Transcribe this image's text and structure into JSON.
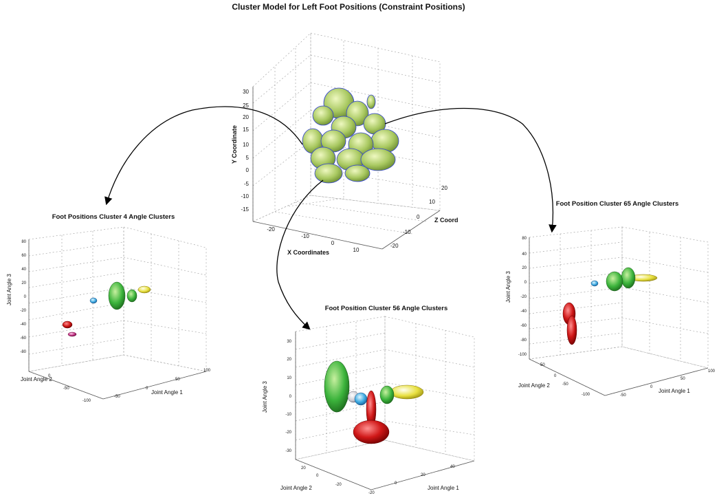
{
  "figure_title": "Cluster Model for Left Foot Positions (Constraint Positions)",
  "colors": {
    "green": "#7ec850",
    "blue": "#3aa8e0",
    "red": "#d01818",
    "yellow": "#e8e040",
    "magenta": "#c03080",
    "center_green": "#a8c860"
  },
  "center_plot": {
    "ylabel": "Y Coordinate",
    "xlabel": "X Coordinates",
    "zlabel": "Z Coord",
    "y_ticks": [
      "30",
      "25",
      "20",
      "15",
      "10",
      "5",
      "0",
      "-5",
      "-10",
      "-15"
    ],
    "x_ticks": [
      "-20",
      "-10",
      "0",
      "10"
    ],
    "z_ticks": [
      "20",
      "10",
      "0",
      "-10",
      "-20"
    ]
  },
  "left_plot": {
    "title": "Foot Positions Cluster 4 Angle Clusters",
    "zlabel": "Joint Angle 3",
    "xlabel": "Joint Angle 1",
    "ylabel": "Joint Angle 2",
    "z_ticks": [
      "80",
      "60",
      "40",
      "20",
      "0",
      "-20",
      "-40",
      "-60",
      "-80"
    ],
    "x_ticks": [
      "100",
      "50",
      "0",
      "-50"
    ],
    "y_ticks": [
      "0",
      "-50",
      "-100"
    ]
  },
  "bottom_plot": {
    "title": "Foot Position Cluster 56 Angle Clusters",
    "zlabel": "Joint Angle 3",
    "xlabel": "Joint Angle 1",
    "ylabel": "Joint Angle 2",
    "z_ticks": [
      "30",
      "20",
      "10",
      "0",
      "-10",
      "-20",
      "-30"
    ],
    "x_ticks": [
      "40",
      "20",
      "0",
      "-20"
    ],
    "y_ticks": [
      "20",
      "0",
      "-20"
    ]
  },
  "right_plot": {
    "title": "Foot Position Cluster 65 Angle Clusters",
    "zlabel": "Joint Angle 3",
    "xlabel": "Joint Angle 1",
    "ylabel": "Joint Angle 2",
    "z_ticks": [
      "80",
      "40",
      "20",
      "0",
      "-20",
      "-40",
      "-60",
      "-80",
      "-100"
    ],
    "x_ticks": [
      "100",
      "50",
      "0",
      "-50"
    ],
    "y_ticks": [
      "50",
      "0",
      "-50",
      "-100"
    ]
  }
}
